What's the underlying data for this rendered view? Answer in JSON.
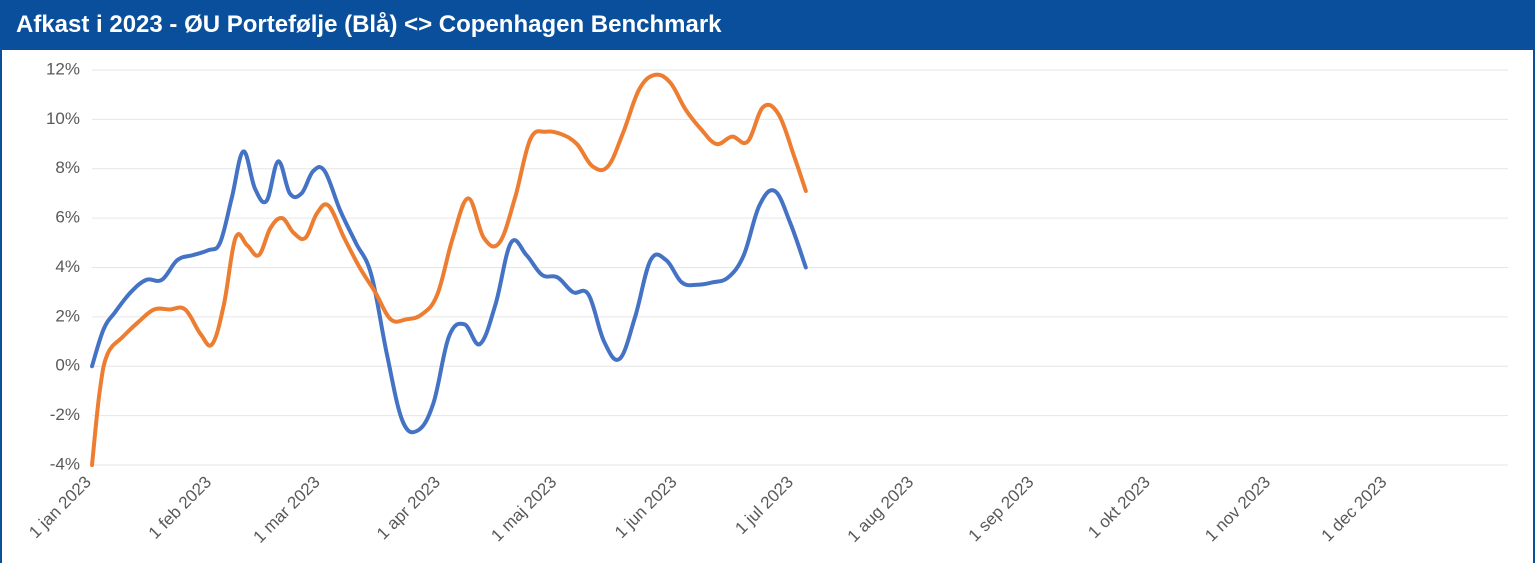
{
  "title": "Afkast i 2023 - ØU Portefølje (Blå) <> Copenhagen Benchmark",
  "colors": {
    "title_bg": "#0a4f9c",
    "title_fg": "#ffffff",
    "border": "#0a4f9c",
    "plot_bg": "#ffffff",
    "grid": "#e6e6e6",
    "axis_label": "#595959"
  },
  "chart": {
    "type": "line",
    "x_domain_days": [
      0,
      365
    ],
    "xticks": [
      {
        "label": "1 jan 2023",
        "day": 0
      },
      {
        "label": "1 feb 2023",
        "day": 31
      },
      {
        "label": "1 mar 2023",
        "day": 59
      },
      {
        "label": "1 apr 2023",
        "day": 90
      },
      {
        "label": "1 maj 2023",
        "day": 120
      },
      {
        "label": "1 jun 2023",
        "day": 151
      },
      {
        "label": "1 jul 2023",
        "day": 181
      },
      {
        "label": "1 aug 2023",
        "day": 212
      },
      {
        "label": "1 sep 2023",
        "day": 243
      },
      {
        "label": "1 okt 2023",
        "day": 273
      },
      {
        "label": "1 nov 2023",
        "day": 304
      },
      {
        "label": "1 dec 2023",
        "day": 334
      }
    ],
    "ylim": [
      -4,
      12
    ],
    "ytick_step": 2,
    "yticks": [
      "-4%",
      "-2%",
      "0%",
      "2%",
      "4%",
      "6%",
      "8%",
      "10%",
      "12%"
    ],
    "xlabel_rotate_deg": -45,
    "label_fontsize": 17,
    "title_fontsize": 24,
    "line_width": 4,
    "series": [
      {
        "name": "ØU Portefølje",
        "color": "#4472c4",
        "points": [
          [
            0,
            0.0
          ],
          [
            3,
            1.5
          ],
          [
            6,
            2.2
          ],
          [
            10,
            3.0
          ],
          [
            14,
            3.5
          ],
          [
            18,
            3.5
          ],
          [
            22,
            4.3
          ],
          [
            26,
            4.5
          ],
          [
            30,
            4.7
          ],
          [
            33,
            5.0
          ],
          [
            36,
            6.8
          ],
          [
            39,
            8.7
          ],
          [
            42,
            7.2
          ],
          [
            45,
            6.7
          ],
          [
            48,
            8.3
          ],
          [
            51,
            7.0
          ],
          [
            54,
            7.0
          ],
          [
            57,
            7.9
          ],
          [
            60,
            7.9
          ],
          [
            64,
            6.3
          ],
          [
            68,
            5.0
          ],
          [
            72,
            3.7
          ],
          [
            76,
            0.5
          ],
          [
            80,
            -2.2
          ],
          [
            84,
            -2.6
          ],
          [
            88,
            -1.5
          ],
          [
            92,
            1.2
          ],
          [
            96,
            1.7
          ],
          [
            100,
            0.9
          ],
          [
            104,
            2.5
          ],
          [
            108,
            5.0
          ],
          [
            112,
            4.5
          ],
          [
            116,
            3.7
          ],
          [
            120,
            3.6
          ],
          [
            124,
            3.0
          ],
          [
            128,
            2.9
          ],
          [
            132,
            1.0
          ],
          [
            136,
            0.3
          ],
          [
            140,
            2.0
          ],
          [
            144,
            4.3
          ],
          [
            148,
            4.3
          ],
          [
            152,
            3.4
          ],
          [
            156,
            3.3
          ],
          [
            160,
            3.4
          ],
          [
            164,
            3.6
          ],
          [
            168,
            4.5
          ],
          [
            172,
            6.5
          ],
          [
            176,
            7.1
          ],
          [
            180,
            5.8
          ],
          [
            184,
            4.0
          ]
        ]
      },
      {
        "name": "Copenhagen Benchmark",
        "color": "#ed7d31",
        "points": [
          [
            0,
            -4.0
          ],
          [
            2,
            -1.0
          ],
          [
            4,
            0.5
          ],
          [
            8,
            1.2
          ],
          [
            12,
            1.8
          ],
          [
            16,
            2.3
          ],
          [
            20,
            2.3
          ],
          [
            24,
            2.3
          ],
          [
            28,
            1.3
          ],
          [
            31,
            0.9
          ],
          [
            34,
            2.5
          ],
          [
            37,
            5.2
          ],
          [
            40,
            4.9
          ],
          [
            43,
            4.5
          ],
          [
            46,
            5.6
          ],
          [
            49,
            6.0
          ],
          [
            52,
            5.4
          ],
          [
            55,
            5.2
          ],
          [
            58,
            6.2
          ],
          [
            61,
            6.5
          ],
          [
            65,
            5.2
          ],
          [
            69,
            4.0
          ],
          [
            73,
            3.0
          ],
          [
            77,
            1.9
          ],
          [
            81,
            1.9
          ],
          [
            85,
            2.1
          ],
          [
            89,
            2.9
          ],
          [
            93,
            5.2
          ],
          [
            97,
            6.8
          ],
          [
            101,
            5.2
          ],
          [
            105,
            5.0
          ],
          [
            109,
            6.8
          ],
          [
            113,
            9.2
          ],
          [
            117,
            9.5
          ],
          [
            121,
            9.4
          ],
          [
            125,
            9.0
          ],
          [
            129,
            8.1
          ],
          [
            133,
            8.1
          ],
          [
            137,
            9.5
          ],
          [
            141,
            11.2
          ],
          [
            145,
            11.8
          ],
          [
            149,
            11.5
          ],
          [
            153,
            10.4
          ],
          [
            157,
            9.6
          ],
          [
            161,
            9.0
          ],
          [
            165,
            9.3
          ],
          [
            169,
            9.1
          ],
          [
            173,
            10.5
          ],
          [
            177,
            10.2
          ],
          [
            181,
            8.5
          ],
          [
            184,
            7.1
          ]
        ]
      }
    ]
  }
}
